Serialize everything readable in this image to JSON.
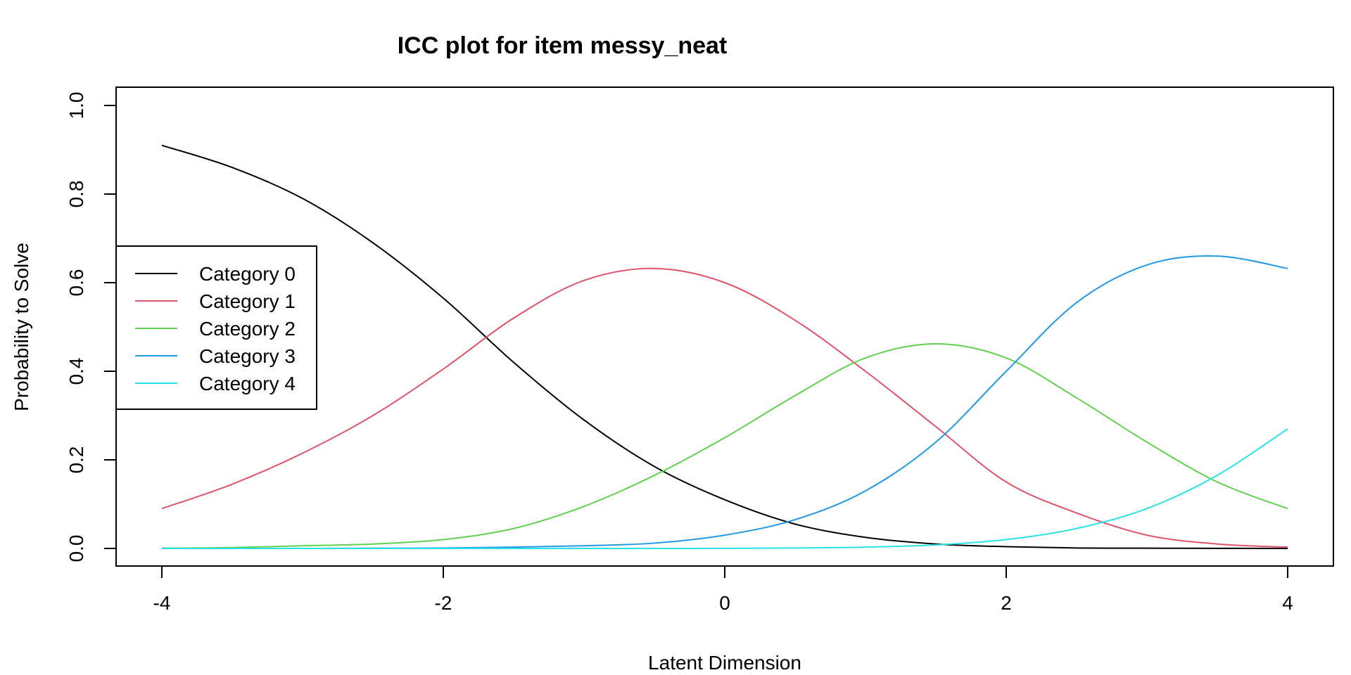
{
  "chart_data": {
    "type": "line",
    "title": "ICC plot for item messy_neat",
    "xlabel": "Latent Dimension",
    "ylabel": "Probability to Solve",
    "xlim": [
      -4,
      4
    ],
    "ylim": [
      0,
      1
    ],
    "x_ticks": [
      "-4",
      "-2",
      "0",
      "2",
      "4"
    ],
    "y_ticks": [
      "0.0",
      "0.2",
      "0.4",
      "0.6",
      "0.8",
      "1.0"
    ],
    "grid": false,
    "legend_position": "left",
    "x": [
      -4,
      -3.5,
      -3,
      -2.5,
      -2,
      -1.5,
      -1,
      -0.5,
      0,
      0.5,
      1,
      1.5,
      2,
      2.5,
      3,
      3.5,
      4
    ],
    "series": [
      {
        "name": "Category 0",
        "color": "#000000",
        "values": [
          0.91,
          0.86,
          0.79,
          0.69,
          0.565,
          0.42,
          0.29,
          0.185,
          0.11,
          0.055,
          0.025,
          0.01,
          0.004,
          0.001,
          0.0005,
          0.0002,
          0.0001
        ]
      },
      {
        "name": "Category 1",
        "color": "#DF536B",
        "values": [
          0.09,
          0.145,
          0.215,
          0.3,
          0.405,
          0.52,
          0.605,
          0.632,
          0.6,
          0.515,
          0.4,
          0.275,
          0.15,
          0.08,
          0.03,
          0.01,
          0.003
        ]
      },
      {
        "name": "Category 2",
        "color": "#61D04F",
        "values": [
          0.0005,
          0.002,
          0.006,
          0.01,
          0.02,
          0.045,
          0.095,
          0.165,
          0.25,
          0.345,
          0.43,
          0.462,
          0.43,
          0.34,
          0.24,
          0.15,
          0.09
        ]
      },
      {
        "name": "Category 3",
        "color": "#2297E6",
        "values": [
          0.0,
          0.0,
          0.0,
          0.0005,
          0.001,
          0.003,
          0.006,
          0.012,
          0.03,
          0.065,
          0.13,
          0.24,
          0.4,
          0.555,
          0.64,
          0.66,
          0.632
        ]
      },
      {
        "name": "Category 4",
        "color": "#28E2E5",
        "values": [
          0.0,
          0.0,
          0.0,
          0.0,
          0.0,
          0.0,
          0.0,
          0.0,
          0.0002,
          0.001,
          0.003,
          0.008,
          0.02,
          0.045,
          0.09,
          0.165,
          0.27
        ]
      }
    ]
  }
}
